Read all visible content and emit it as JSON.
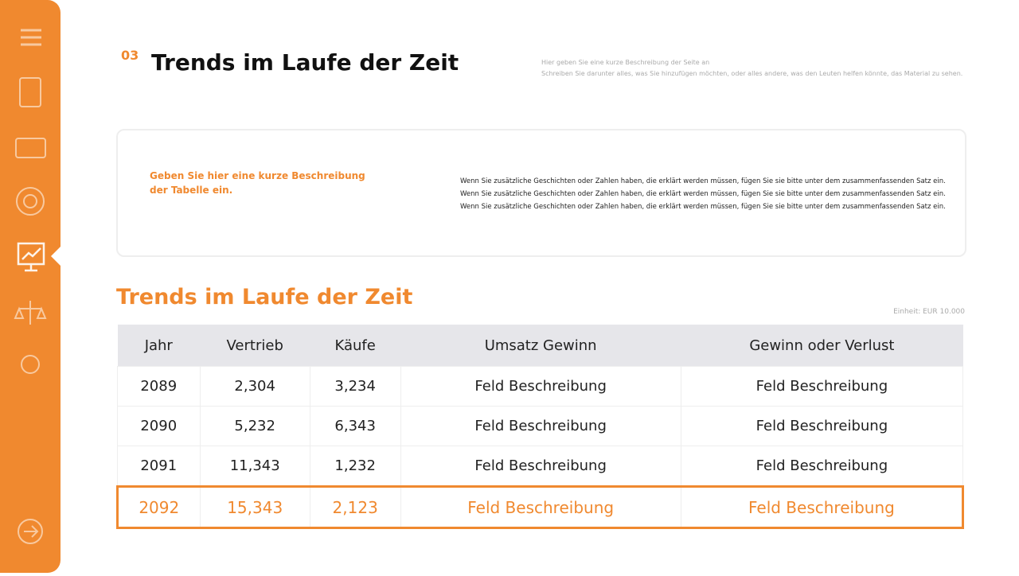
{
  "header": {
    "number": "03",
    "title": "Trends im Laufe der Zeit",
    "description": [
      "Hier geben Sie eine kurze Beschreibung der Seite an",
      "Schreiben Sie darunter alles, was Sie hinzufügen möchten, oder alles andere, was den Leuten helfen könnte, das Material zu sehen."
    ]
  },
  "card": {
    "lead": "Geben Sie hier eine kurze Beschreibung der Tabelle ein.",
    "lines": [
      "Wenn Sie zusätzliche Geschichten oder Zahlen haben, die erklärt werden müssen, fügen Sie sie bitte unter dem zusammenfassenden Satz ein.",
      "Wenn Sie zusätzliche Geschichten oder Zahlen haben, die erklärt werden müssen, fügen Sie sie bitte unter dem zusammenfassenden Satz ein.",
      "Wenn Sie zusätzliche Geschichten oder Zahlen haben, die erklärt werden müssen, fügen Sie sie bitte unter dem zusammenfassenden Satz ein."
    ]
  },
  "table": {
    "title": "Trends im Laufe der Zeit",
    "unit": "Einheit: EUR 10.000",
    "columns": [
      "Jahr",
      "Vertrieb",
      "Käufe",
      "Umsatz Gewinn",
      "Gewinn oder Verlust"
    ],
    "rows": [
      [
        "2089",
        "2,304",
        "3,234",
        "Feld Beschreibung",
        "Feld Beschreibung"
      ],
      [
        "2090",
        "5,232",
        "6,343",
        "Feld Beschreibung",
        "Feld Beschreibung"
      ],
      [
        "2091",
        "11,343",
        "1,232",
        "Feld Beschreibung",
        "Feld Beschreibung"
      ],
      [
        "2092",
        "15,343",
        "2,123",
        "Feld Beschreibung",
        "Feld Beschreibung"
      ]
    ]
  }
}
